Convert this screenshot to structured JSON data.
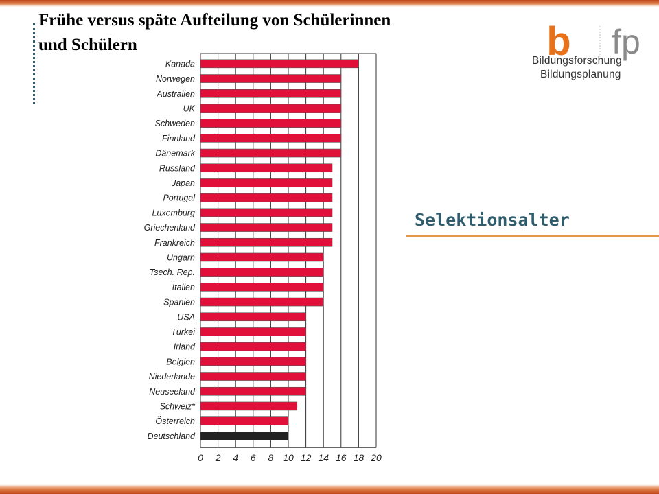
{
  "slide": {
    "title_line1": "Frühe versus späte Aufteilung von Schülerinnen",
    "title_line2": "und Schülern",
    "section_label": "Selektionsalter"
  },
  "logo": {
    "mark_b": "b",
    "mark_fp": "fp",
    "line1": "Bildungsforschung",
    "line2": "Bildungsplanung",
    "color_b": "#e8721c",
    "color_fp": "#8a8a8a"
  },
  "chart_data": {
    "type": "bar",
    "orientation": "horizontal",
    "categories": [
      "Kanada",
      "Norwegen",
      "Australien",
      "UK",
      "Schweden",
      "Finnland",
      "Dänemark",
      "Russland",
      "Japan",
      "Portugal",
      "Luxemburg",
      "Griechenland",
      "Frankreich",
      "Ungarn",
      "Tsech. Rep.",
      "Italien",
      "Spanien",
      "USA",
      "Türkei",
      "Irland",
      "Belgien",
      "Niederlande",
      "Neuseeland",
      "Schweiz*",
      "Österreich",
      "Deutschland"
    ],
    "values": [
      18,
      16,
      16,
      16,
      16,
      16,
      16,
      15,
      15,
      15,
      15,
      15,
      15,
      14,
      14,
      14,
      14,
      12,
      12,
      12,
      12,
      12,
      12,
      11,
      10,
      10
    ],
    "highlight_category": "Deutschland",
    "bar_color": "#e0103a",
    "highlight_color": "#222222",
    "xlim": [
      0,
      20
    ],
    "xticks": [
      0,
      2,
      4,
      6,
      8,
      10,
      12,
      14,
      16,
      18,
      20
    ],
    "grid": true
  }
}
